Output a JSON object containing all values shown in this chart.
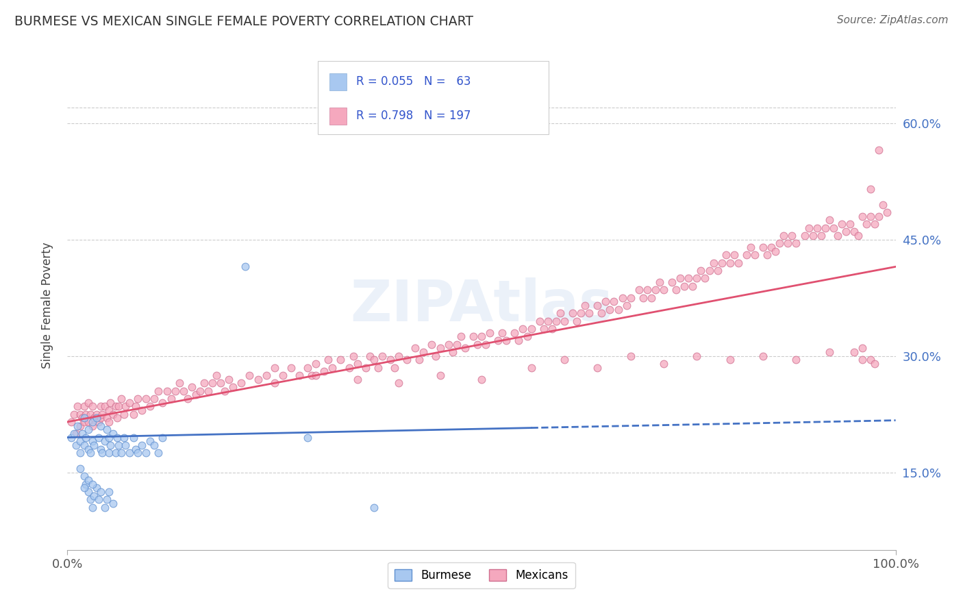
{
  "title": "BURMESE VS MEXICAN SINGLE FEMALE POVERTY CORRELATION CHART",
  "source": "Source: ZipAtlas.com",
  "ylabel": "Single Female Poverty",
  "xlim": [
    0.0,
    1.0
  ],
  "ylim": [
    0.05,
    0.68
  ],
  "xtick_labels": [
    "0.0%",
    "100.0%"
  ],
  "ytick_labels": [
    "15.0%",
    "30.0%",
    "45.0%",
    "60.0%"
  ],
  "ytick_values": [
    0.15,
    0.3,
    0.45,
    0.6
  ],
  "burmese_color": "#a8c8f0",
  "mexican_color": "#f5a8be",
  "burmese_line_color": "#4472c4",
  "mexican_line_color": "#e05070",
  "watermark": "ZIPAtlas",
  "burmese_scatter": [
    [
      0.005,
      0.195
    ],
    [
      0.008,
      0.2
    ],
    [
      0.01,
      0.185
    ],
    [
      0.012,
      0.21
    ],
    [
      0.015,
      0.19
    ],
    [
      0.015,
      0.175
    ],
    [
      0.018,
      0.2
    ],
    [
      0.02,
      0.22
    ],
    [
      0.02,
      0.185
    ],
    [
      0.022,
      0.195
    ],
    [
      0.025,
      0.18
    ],
    [
      0.025,
      0.205
    ],
    [
      0.028,
      0.175
    ],
    [
      0.03,
      0.19
    ],
    [
      0.03,
      0.215
    ],
    [
      0.032,
      0.185
    ],
    [
      0.035,
      0.22
    ],
    [
      0.038,
      0.195
    ],
    [
      0.04,
      0.18
    ],
    [
      0.04,
      0.21
    ],
    [
      0.042,
      0.175
    ],
    [
      0.045,
      0.19
    ],
    [
      0.048,
      0.205
    ],
    [
      0.05,
      0.195
    ],
    [
      0.05,
      0.175
    ],
    [
      0.052,
      0.185
    ],
    [
      0.055,
      0.2
    ],
    [
      0.058,
      0.175
    ],
    [
      0.06,
      0.195
    ],
    [
      0.062,
      0.185
    ],
    [
      0.065,
      0.175
    ],
    [
      0.068,
      0.195
    ],
    [
      0.07,
      0.185
    ],
    [
      0.075,
      0.175
    ],
    [
      0.08,
      0.195
    ],
    [
      0.082,
      0.18
    ],
    [
      0.085,
      0.175
    ],
    [
      0.09,
      0.185
    ],
    [
      0.095,
      0.175
    ],
    [
      0.1,
      0.19
    ],
    [
      0.105,
      0.185
    ],
    [
      0.11,
      0.175
    ],
    [
      0.115,
      0.195
    ],
    [
      0.015,
      0.155
    ],
    [
      0.02,
      0.145
    ],
    [
      0.022,
      0.135
    ],
    [
      0.025,
      0.125
    ],
    [
      0.028,
      0.115
    ],
    [
      0.03,
      0.105
    ],
    [
      0.032,
      0.12
    ],
    [
      0.035,
      0.13
    ],
    [
      0.038,
      0.115
    ],
    [
      0.04,
      0.125
    ],
    [
      0.045,
      0.105
    ],
    [
      0.048,
      0.115
    ],
    [
      0.05,
      0.125
    ],
    [
      0.055,
      0.11
    ],
    [
      0.02,
      0.13
    ],
    [
      0.025,
      0.14
    ],
    [
      0.03,
      0.135
    ],
    [
      0.215,
      0.415
    ],
    [
      0.29,
      0.195
    ],
    [
      0.37,
      0.105
    ]
  ],
  "mexican_scatter": [
    [
      0.005,
      0.215
    ],
    [
      0.008,
      0.225
    ],
    [
      0.01,
      0.2
    ],
    [
      0.012,
      0.235
    ],
    [
      0.015,
      0.21
    ],
    [
      0.015,
      0.225
    ],
    [
      0.018,
      0.22
    ],
    [
      0.02,
      0.235
    ],
    [
      0.02,
      0.215
    ],
    [
      0.022,
      0.225
    ],
    [
      0.025,
      0.215
    ],
    [
      0.025,
      0.24
    ],
    [
      0.028,
      0.225
    ],
    [
      0.03,
      0.21
    ],
    [
      0.03,
      0.235
    ],
    [
      0.032,
      0.22
    ],
    [
      0.035,
      0.225
    ],
    [
      0.038,
      0.215
    ],
    [
      0.04,
      0.235
    ],
    [
      0.04,
      0.22
    ],
    [
      0.042,
      0.225
    ],
    [
      0.045,
      0.235
    ],
    [
      0.048,
      0.22
    ],
    [
      0.05,
      0.23
    ],
    [
      0.05,
      0.215
    ],
    [
      0.052,
      0.24
    ],
    [
      0.055,
      0.225
    ],
    [
      0.058,
      0.235
    ],
    [
      0.06,
      0.22
    ],
    [
      0.062,
      0.235
    ],
    [
      0.065,
      0.245
    ],
    [
      0.068,
      0.225
    ],
    [
      0.07,
      0.235
    ],
    [
      0.075,
      0.24
    ],
    [
      0.08,
      0.225
    ],
    [
      0.082,
      0.235
    ],
    [
      0.085,
      0.245
    ],
    [
      0.09,
      0.23
    ],
    [
      0.095,
      0.245
    ],
    [
      0.1,
      0.235
    ],
    [
      0.105,
      0.245
    ],
    [
      0.11,
      0.255
    ],
    [
      0.115,
      0.24
    ],
    [
      0.12,
      0.255
    ],
    [
      0.125,
      0.245
    ],
    [
      0.13,
      0.255
    ],
    [
      0.135,
      0.265
    ],
    [
      0.14,
      0.255
    ],
    [
      0.145,
      0.245
    ],
    [
      0.15,
      0.26
    ],
    [
      0.155,
      0.25
    ],
    [
      0.16,
      0.255
    ],
    [
      0.165,
      0.265
    ],
    [
      0.17,
      0.255
    ],
    [
      0.175,
      0.265
    ],
    [
      0.18,
      0.275
    ],
    [
      0.185,
      0.265
    ],
    [
      0.19,
      0.255
    ],
    [
      0.195,
      0.27
    ],
    [
      0.2,
      0.26
    ],
    [
      0.21,
      0.265
    ],
    [
      0.22,
      0.275
    ],
    [
      0.23,
      0.27
    ],
    [
      0.24,
      0.275
    ],
    [
      0.25,
      0.285
    ],
    [
      0.26,
      0.275
    ],
    [
      0.27,
      0.285
    ],
    [
      0.28,
      0.275
    ],
    [
      0.29,
      0.285
    ],
    [
      0.295,
      0.275
    ],
    [
      0.3,
      0.29
    ],
    [
      0.31,
      0.28
    ],
    [
      0.315,
      0.295
    ],
    [
      0.32,
      0.285
    ],
    [
      0.33,
      0.295
    ],
    [
      0.34,
      0.285
    ],
    [
      0.345,
      0.3
    ],
    [
      0.35,
      0.29
    ],
    [
      0.36,
      0.285
    ],
    [
      0.365,
      0.3
    ],
    [
      0.37,
      0.295
    ],
    [
      0.375,
      0.285
    ],
    [
      0.38,
      0.3
    ],
    [
      0.39,
      0.295
    ],
    [
      0.395,
      0.285
    ],
    [
      0.4,
      0.3
    ],
    [
      0.41,
      0.295
    ],
    [
      0.42,
      0.31
    ],
    [
      0.425,
      0.295
    ],
    [
      0.43,
      0.305
    ],
    [
      0.44,
      0.315
    ],
    [
      0.445,
      0.3
    ],
    [
      0.45,
      0.31
    ],
    [
      0.46,
      0.315
    ],
    [
      0.465,
      0.305
    ],
    [
      0.47,
      0.315
    ],
    [
      0.475,
      0.325
    ],
    [
      0.48,
      0.31
    ],
    [
      0.49,
      0.325
    ],
    [
      0.495,
      0.315
    ],
    [
      0.5,
      0.325
    ],
    [
      0.505,
      0.315
    ],
    [
      0.51,
      0.33
    ],
    [
      0.52,
      0.32
    ],
    [
      0.525,
      0.33
    ],
    [
      0.53,
      0.32
    ],
    [
      0.54,
      0.33
    ],
    [
      0.545,
      0.32
    ],
    [
      0.55,
      0.335
    ],
    [
      0.555,
      0.325
    ],
    [
      0.56,
      0.335
    ],
    [
      0.57,
      0.345
    ],
    [
      0.575,
      0.335
    ],
    [
      0.58,
      0.345
    ],
    [
      0.585,
      0.335
    ],
    [
      0.59,
      0.345
    ],
    [
      0.595,
      0.355
    ],
    [
      0.6,
      0.345
    ],
    [
      0.61,
      0.355
    ],
    [
      0.615,
      0.345
    ],
    [
      0.62,
      0.355
    ],
    [
      0.625,
      0.365
    ],
    [
      0.63,
      0.355
    ],
    [
      0.64,
      0.365
    ],
    [
      0.645,
      0.355
    ],
    [
      0.65,
      0.37
    ],
    [
      0.655,
      0.36
    ],
    [
      0.66,
      0.37
    ],
    [
      0.665,
      0.36
    ],
    [
      0.67,
      0.375
    ],
    [
      0.675,
      0.365
    ],
    [
      0.68,
      0.375
    ],
    [
      0.69,
      0.385
    ],
    [
      0.695,
      0.375
    ],
    [
      0.7,
      0.385
    ],
    [
      0.705,
      0.375
    ],
    [
      0.71,
      0.385
    ],
    [
      0.715,
      0.395
    ],
    [
      0.72,
      0.385
    ],
    [
      0.73,
      0.395
    ],
    [
      0.735,
      0.385
    ],
    [
      0.74,
      0.4
    ],
    [
      0.745,
      0.39
    ],
    [
      0.75,
      0.4
    ],
    [
      0.755,
      0.39
    ],
    [
      0.76,
      0.4
    ],
    [
      0.765,
      0.41
    ],
    [
      0.77,
      0.4
    ],
    [
      0.775,
      0.41
    ],
    [
      0.78,
      0.42
    ],
    [
      0.785,
      0.41
    ],
    [
      0.79,
      0.42
    ],
    [
      0.795,
      0.43
    ],
    [
      0.8,
      0.42
    ],
    [
      0.805,
      0.43
    ],
    [
      0.81,
      0.42
    ],
    [
      0.82,
      0.43
    ],
    [
      0.825,
      0.44
    ],
    [
      0.83,
      0.43
    ],
    [
      0.84,
      0.44
    ],
    [
      0.845,
      0.43
    ],
    [
      0.85,
      0.44
    ],
    [
      0.855,
      0.435
    ],
    [
      0.86,
      0.445
    ],
    [
      0.865,
      0.455
    ],
    [
      0.87,
      0.445
    ],
    [
      0.875,
      0.455
    ],
    [
      0.88,
      0.445
    ],
    [
      0.89,
      0.455
    ],
    [
      0.895,
      0.465
    ],
    [
      0.9,
      0.455
    ],
    [
      0.905,
      0.465
    ],
    [
      0.91,
      0.455
    ],
    [
      0.915,
      0.465
    ],
    [
      0.92,
      0.475
    ],
    [
      0.925,
      0.465
    ],
    [
      0.93,
      0.455
    ],
    [
      0.935,
      0.47
    ],
    [
      0.94,
      0.46
    ],
    [
      0.945,
      0.47
    ],
    [
      0.95,
      0.46
    ],
    [
      0.955,
      0.455
    ],
    [
      0.96,
      0.48
    ],
    [
      0.965,
      0.47
    ],
    [
      0.97,
      0.48
    ],
    [
      0.975,
      0.47
    ],
    [
      0.98,
      0.48
    ],
    [
      0.985,
      0.495
    ],
    [
      0.99,
      0.485
    ],
    [
      0.56,
      0.285
    ],
    [
      0.6,
      0.295
    ],
    [
      0.64,
      0.285
    ],
    [
      0.68,
      0.3
    ],
    [
      0.72,
      0.29
    ],
    [
      0.76,
      0.3
    ],
    [
      0.8,
      0.295
    ],
    [
      0.84,
      0.3
    ],
    [
      0.88,
      0.295
    ],
    [
      0.92,
      0.305
    ],
    [
      0.96,
      0.295
    ],
    [
      0.97,
      0.295
    ],
    [
      0.975,
      0.29
    ],
    [
      0.25,
      0.265
    ],
    [
      0.3,
      0.275
    ],
    [
      0.35,
      0.27
    ],
    [
      0.4,
      0.265
    ],
    [
      0.45,
      0.275
    ],
    [
      0.5,
      0.27
    ],
    [
      0.98,
      0.565
    ],
    [
      0.97,
      0.515
    ],
    [
      0.96,
      0.31
    ],
    [
      0.95,
      0.305
    ]
  ]
}
